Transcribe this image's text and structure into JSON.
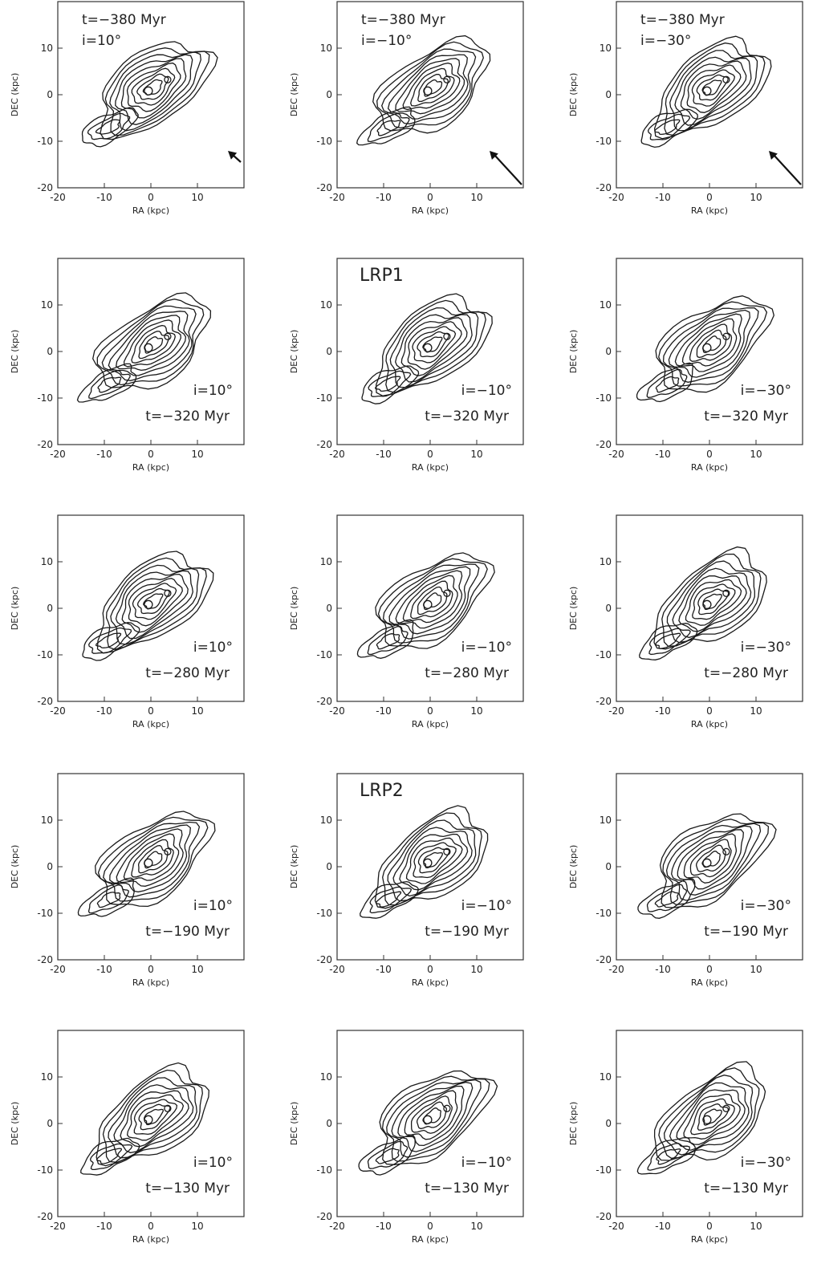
{
  "figure": {
    "x_axis_label": "RA (kpc)",
    "y_axis_label": "DEC (kpc)",
    "x_ticks": [
      "-20",
      "-10",
      "0",
      "10"
    ],
    "y_ticks": [
      "10",
      "0",
      "-10",
      "-20"
    ],
    "x_range": [
      -20,
      20
    ],
    "y_range": [
      -20,
      20
    ],
    "arrow_marker": "direction-arrow-icon",
    "panels": [
      {
        "row": 0,
        "col": 0,
        "incl": "i=10°",
        "time": "t=−380 Myr",
        "label_pos": "top",
        "model": "",
        "arrow": "short"
      },
      {
        "row": 0,
        "col": 1,
        "incl": "i=−10°",
        "time": "t=−380 Myr",
        "label_pos": "top",
        "model": "",
        "arrow": "long"
      },
      {
        "row": 0,
        "col": 2,
        "incl": "i=−30°",
        "time": "t=−380 Myr",
        "label_pos": "top",
        "model": "",
        "arrow": "long"
      },
      {
        "row": 1,
        "col": 0,
        "incl": "i=10°",
        "time": "t=−320 Myr",
        "label_pos": "bottom",
        "model": "",
        "arrow": ""
      },
      {
        "row": 1,
        "col": 1,
        "incl": "i=−10°",
        "time": "t=−320 Myr",
        "label_pos": "bottom",
        "model": "LRP1",
        "arrow": ""
      },
      {
        "row": 1,
        "col": 2,
        "incl": "i=−30°",
        "time": "t=−320 Myr",
        "label_pos": "bottom",
        "model": "",
        "arrow": ""
      },
      {
        "row": 2,
        "col": 0,
        "incl": "i=10°",
        "time": "t=−280 Myr",
        "label_pos": "bottom",
        "model": "",
        "arrow": ""
      },
      {
        "row": 2,
        "col": 1,
        "incl": "i=−10°",
        "time": "t=−280 Myr",
        "label_pos": "bottom",
        "model": "",
        "arrow": ""
      },
      {
        "row": 2,
        "col": 2,
        "incl": "i=−30°",
        "time": "t=−280 Myr",
        "label_pos": "bottom",
        "model": "",
        "arrow": ""
      },
      {
        "row": 3,
        "col": 0,
        "incl": "i=10°",
        "time": "t=−190 Myr",
        "label_pos": "bottom",
        "model": "",
        "arrow": ""
      },
      {
        "row": 3,
        "col": 1,
        "incl": "i=−10°",
        "time": "t=−190 Myr",
        "label_pos": "bottom",
        "model": "LRP2",
        "arrow": ""
      },
      {
        "row": 3,
        "col": 2,
        "incl": "i=−30°",
        "time": "t=−190 Myr",
        "label_pos": "bottom",
        "model": "",
        "arrow": ""
      },
      {
        "row": 4,
        "col": 0,
        "incl": "i=10°",
        "time": "t=−130 Myr",
        "label_pos": "bottom",
        "model": "",
        "arrow": ""
      },
      {
        "row": 4,
        "col": 1,
        "incl": "i=−10°",
        "time": "t=−130 Myr",
        "label_pos": "bottom",
        "model": "",
        "arrow": ""
      },
      {
        "row": 4,
        "col": 2,
        "incl": "i=−30°",
        "time": "t=−130 Myr",
        "label_pos": "bottom",
        "model": "",
        "arrow": ""
      }
    ]
  }
}
